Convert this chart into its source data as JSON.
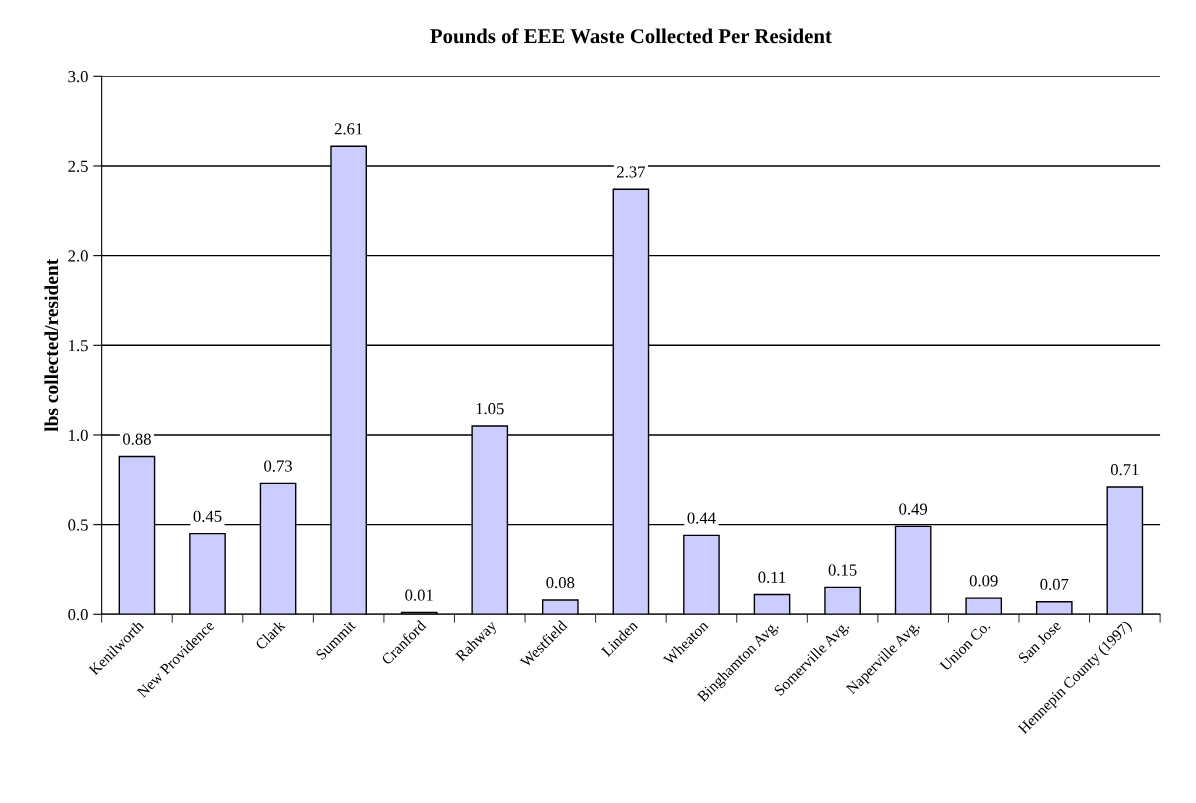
{
  "chart_data": {
    "type": "bar",
    "title": "Pounds of EEE Waste Collected Per Resident",
    "ylabel": "lbs collected/resident",
    "categories": [
      "Kenilworth",
      "New Providence",
      "Clark",
      "Summit",
      "Cranford",
      "Rahway",
      "Westfield",
      "Linden",
      "Wheaton",
      "Binghamton Avg.",
      "Somerville Avg.",
      "Naperville Avg.",
      "Union Co.",
      "San Jose",
      "Hennepin County (1997)"
    ],
    "values": [
      0.88,
      0.45,
      0.73,
      2.61,
      0.01,
      1.05,
      0.08,
      2.37,
      0.44,
      0.11,
      0.15,
      0.49,
      0.09,
      0.07,
      0.71
    ],
    "color": "#ccccff",
    "ylim": [
      0,
      3
    ],
    "yticks": [
      {
        "value": 0,
        "label": "0.0"
      },
      {
        "value": 0.5,
        "label": "0.5"
      },
      {
        "value": 1,
        "label": "1.0"
      },
      {
        "value": 1.5,
        "label": "1.5"
      },
      {
        "value": 2,
        "label": "2.0"
      },
      {
        "value": 2.5,
        "label": "2.5"
      },
      {
        "value": 3,
        "label": "3.0"
      }
    ],
    "grid": "y",
    "data_labels": true
  }
}
